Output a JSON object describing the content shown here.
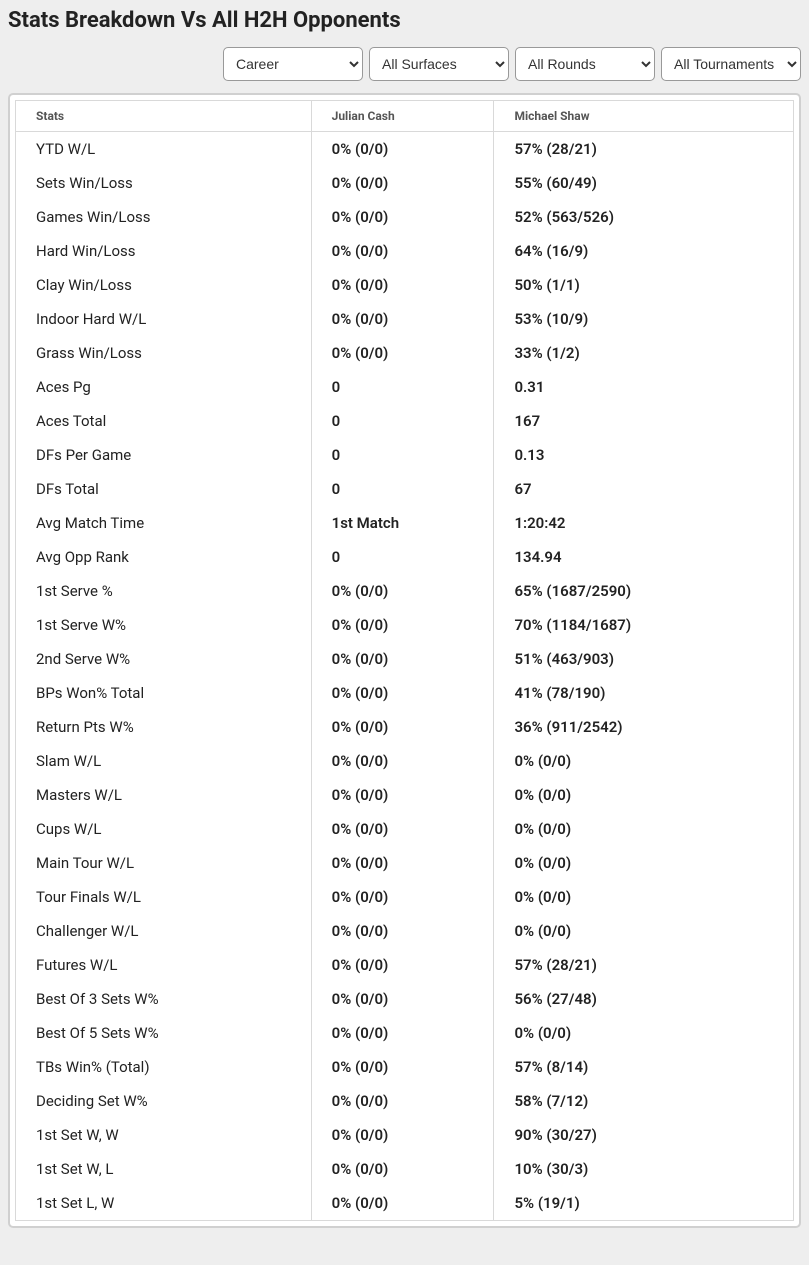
{
  "title": "Stats Breakdown Vs All H2H Opponents",
  "filters": {
    "career": "Career",
    "surfaces": "All Surfaces",
    "rounds": "All Rounds",
    "tournaments": "All Tournaments"
  },
  "table": {
    "headers": {
      "stats": "Stats",
      "p1": "Julian Cash",
      "p2": "Michael Shaw"
    },
    "rows": [
      {
        "label": "YTD W/L",
        "p1": "0% (0/0)",
        "p2": "57% (28/21)"
      },
      {
        "label": "Sets Win/Loss",
        "p1": "0% (0/0)",
        "p2": "55% (60/49)"
      },
      {
        "label": "Games Win/Loss",
        "p1": "0% (0/0)",
        "p2": "52% (563/526)"
      },
      {
        "label": "Hard Win/Loss",
        "p1": "0% (0/0)",
        "p2": "64% (16/9)"
      },
      {
        "label": "Clay Win/Loss",
        "p1": "0% (0/0)",
        "p2": "50% (1/1)"
      },
      {
        "label": "Indoor Hard W/L",
        "p1": "0% (0/0)",
        "p2": "53% (10/9)"
      },
      {
        "label": "Grass Win/Loss",
        "p1": "0% (0/0)",
        "p2": "33% (1/2)"
      },
      {
        "label": "Aces Pg",
        "p1": "0",
        "p2": "0.31"
      },
      {
        "label": "Aces Total",
        "p1": "0",
        "p2": "167"
      },
      {
        "label": "DFs Per Game",
        "p1": "0",
        "p2": "0.13"
      },
      {
        "label": "DFs Total",
        "p1": "0",
        "p2": "67"
      },
      {
        "label": "Avg Match Time",
        "p1": "1st Match",
        "p2": "1:20:42"
      },
      {
        "label": "Avg Opp Rank",
        "p1": "0",
        "p2": "134.94"
      },
      {
        "label": "1st Serve %",
        "p1": "0% (0/0)",
        "p2": "65% (1687/2590)"
      },
      {
        "label": "1st Serve W%",
        "p1": "0% (0/0)",
        "p2": "70% (1184/1687)"
      },
      {
        "label": "2nd Serve W%",
        "p1": "0% (0/0)",
        "p2": "51% (463/903)"
      },
      {
        "label": "BPs Won% Total",
        "p1": "0% (0/0)",
        "p2": "41% (78/190)"
      },
      {
        "label": "Return Pts W%",
        "p1": "0% (0/0)",
        "p2": "36% (911/2542)"
      },
      {
        "label": "Slam W/L",
        "p1": "0% (0/0)",
        "p2": "0% (0/0)"
      },
      {
        "label": "Masters W/L",
        "p1": "0% (0/0)",
        "p2": "0% (0/0)"
      },
      {
        "label": "Cups W/L",
        "p1": "0% (0/0)",
        "p2": "0% (0/0)"
      },
      {
        "label": "Main Tour W/L",
        "p1": "0% (0/0)",
        "p2": "0% (0/0)"
      },
      {
        "label": "Tour Finals W/L",
        "p1": "0% (0/0)",
        "p2": "0% (0/0)"
      },
      {
        "label": "Challenger W/L",
        "p1": "0% (0/0)",
        "p2": "0% (0/0)"
      },
      {
        "label": "Futures W/L",
        "p1": "0% (0/0)",
        "p2": "57% (28/21)"
      },
      {
        "label": "Best Of 3 Sets W%",
        "p1": "0% (0/0)",
        "p2": "56% (27/48)"
      },
      {
        "label": "Best Of 5 Sets W%",
        "p1": "0% (0/0)",
        "p2": "0% (0/0)"
      },
      {
        "label": "TBs Win% (Total)",
        "p1": "0% (0/0)",
        "p2": "57% (8/14)"
      },
      {
        "label": "Deciding Set W%",
        "p1": "0% (0/0)",
        "p2": "58% (7/12)"
      },
      {
        "label": "1st Set W, W",
        "p1": "0% (0/0)",
        "p2": "90% (30/27)"
      },
      {
        "label": "1st Set W, L",
        "p1": "0% (0/0)",
        "p2": "10% (30/3)"
      },
      {
        "label": "1st Set L, W",
        "p1": "0% (0/0)",
        "p2": "5% (19/1)"
      }
    ]
  }
}
